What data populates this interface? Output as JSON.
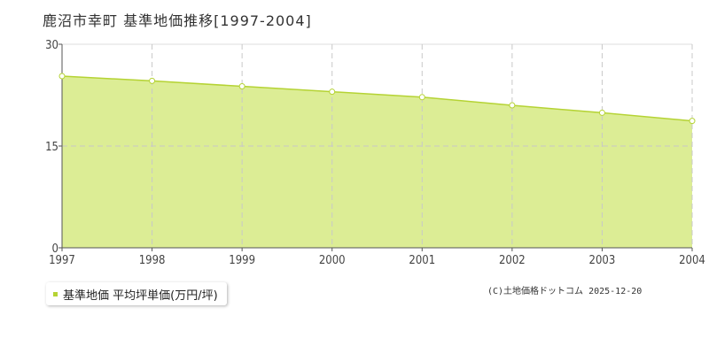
{
  "title": "鹿沼市幸町 基準地価推移[1997-2004]",
  "legend_label": "基準地価 平均坪単価(万円/坪)",
  "credit": "(C)土地価格ドットコム 2025-12-20",
  "colors": {
    "fill": "#dced95",
    "line": "#b5d334",
    "grid": "#c8c8c8"
  },
  "chart_data": {
    "type": "area",
    "title": "鹿沼市幸町 基準地価推移[1997-2004]",
    "categories": [
      "1997",
      "1998",
      "1999",
      "2000",
      "2001",
      "2002",
      "2003",
      "2004"
    ],
    "series": [
      {
        "name": "基準地価 平均坪単価(万円/坪)",
        "values": [
          25.3,
          24.6,
          23.8,
          23.0,
          22.2,
          21.0,
          19.9,
          18.7
        ]
      }
    ],
    "ylim": [
      0,
      30
    ],
    "yticks": [
      "0",
      "15",
      "30"
    ],
    "grid": true,
    "legend": "bottom-left"
  }
}
